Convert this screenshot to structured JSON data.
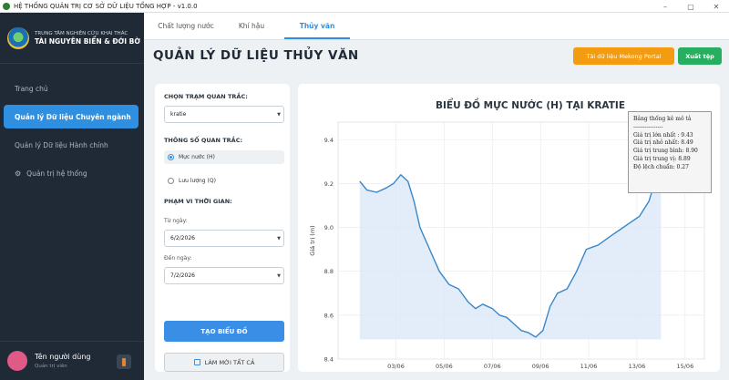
{
  "window": {
    "title": "HỆ THỐNG QUẢN TRỊ CƠ SỞ DỮ LIỆU TỔNG HỢP - v1.0.0",
    "controls": [
      "–",
      "▢",
      "✕"
    ]
  },
  "sidebar": {
    "brand_sub": "TRUNG TÂM NGHIÊN CỨU KHAI THÁC",
    "brand_main": "TÀI NGUYÊN BIỂN & ĐỚI BỜ",
    "items": [
      {
        "label": "Trang chủ"
      },
      {
        "label": "Quản lý Dữ liệu Chuyên ngành"
      },
      {
        "label": "Quản lý Dữ liệu Hành chính"
      },
      {
        "label": "Quản trị hệ thống",
        "icon": "gear-icon"
      }
    ],
    "user_name": "Tên người dùng",
    "user_role": "Quản trị viên"
  },
  "tabs": [
    "Chất lượng nước",
    "Khí hậu",
    "Thủy văn"
  ],
  "active_tab": "Thủy văn",
  "page_title": "QUẢN LÝ DỮ LIỆU THỦY VĂN",
  "buttons": {
    "mekong": "Tải dữ liệu Mekong Portal",
    "export": "Xuất tệp",
    "create": "TẠO BIỂU ĐỒ",
    "reset": "LÀM MỚI TẤT CẢ"
  },
  "form": {
    "station_label": "CHỌN TRẠM QUAN TRẮC:",
    "station_value": "kratie",
    "param_label": "THÔNG SỐ QUAN TRẮC:",
    "param_options": [
      "Mực nước (H)",
      "Lưu lượng (Q)"
    ],
    "param_selected": "Mực nước (H)",
    "range_label": "PHẠM VI THỜI GIAN:",
    "from_label": "Từ ngày:",
    "from_value": "6/2/2026",
    "to_label": "Đến ngày:",
    "to_value": "7/2/2026"
  },
  "colors": {
    "accent": "#2f8fe0",
    "sidebar_bg": "#1f2a36",
    "mekong_btn": "#f39c12",
    "export_btn": "#27ae60",
    "line": "#3a86c8"
  },
  "stats_box": {
    "title": "Bảng thống kê mô tả",
    "separator": "----------------",
    "lines": [
      "Giá trị lớn nhất : 9.43",
      "Giá trị nhỏ nhất: 8.49",
      "Giá trị trung bình: 8.90",
      "Giá trị trung vị: 8.89",
      "Độ lệch chuẩn: 0.27"
    ]
  },
  "chart_data": {
    "type": "area",
    "title": "BIỂU ĐỒ MỰC NƯỚC (H) TẠI KRATIE",
    "xlabel": "",
    "ylabel": "Giá trị (m)",
    "y_ticks": [
      8.4,
      8.6,
      8.8,
      9.0,
      9.2,
      9.4
    ],
    "x_ticks": [
      "03/06",
      "05/06",
      "07/06",
      "09/06",
      "11/06",
      "13/06",
      "15/06"
    ],
    "ylim": [
      8.4,
      9.48
    ],
    "xlim": [
      0.6,
      15.8
    ],
    "fill_baseline": 8.49,
    "grid": true,
    "x": [
      1.5,
      1.8,
      2.2,
      2.6,
      2.9,
      3.2,
      3.5,
      3.75,
      4.0,
      4.4,
      4.8,
      5.2,
      5.6,
      6.0,
      6.3,
      6.6,
      7.0,
      7.3,
      7.6,
      7.9,
      8.2,
      8.5,
      8.8,
      9.1,
      9.4,
      9.7,
      10.1,
      10.5,
      10.9,
      11.4,
      11.9,
      12.3,
      12.7,
      13.1,
      13.5,
      14.0
    ],
    "values": [
      9.21,
      9.17,
      9.16,
      9.18,
      9.2,
      9.24,
      9.21,
      9.12,
      9.0,
      8.9,
      8.8,
      8.74,
      8.72,
      8.66,
      8.63,
      8.65,
      8.63,
      8.6,
      8.59,
      8.56,
      8.53,
      8.52,
      8.5,
      8.53,
      8.64,
      8.7,
      8.72,
      8.8,
      8.9,
      8.92,
      8.96,
      8.99,
      9.02,
      9.05,
      9.12,
      9.3
    ]
  }
}
